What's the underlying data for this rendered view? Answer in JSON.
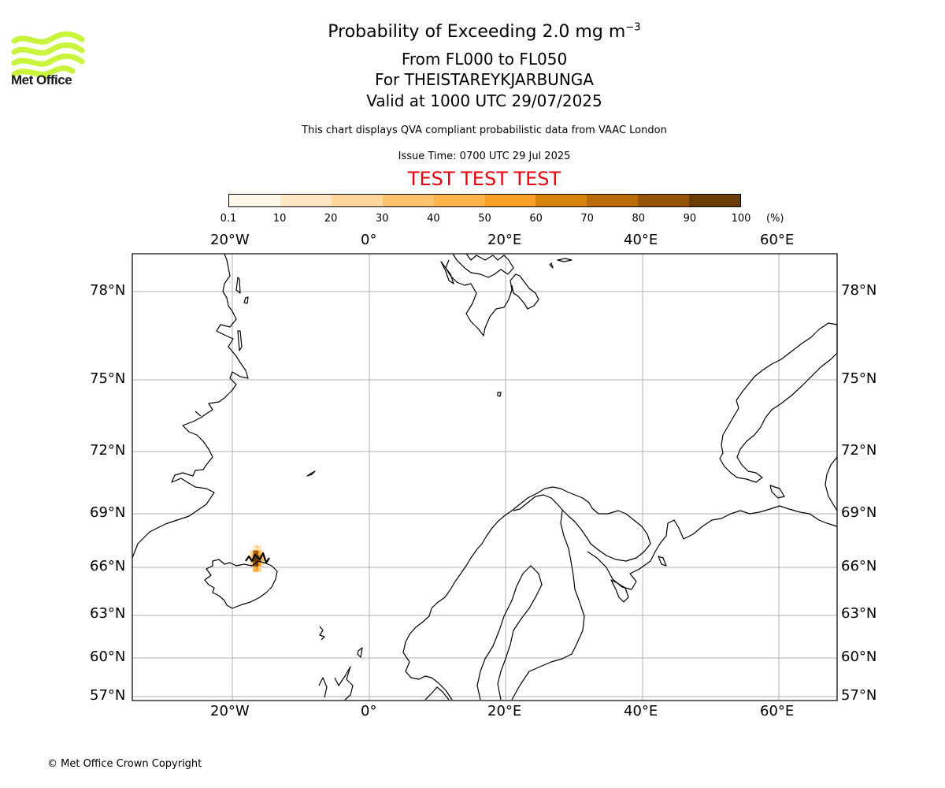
{
  "branding": {
    "logo_text": "Met Office",
    "logo_color": "#c8f53c"
  },
  "header": {
    "title_prefix": "Probability of Exceeding 2.0 mg m",
    "title_exponent": "−3",
    "levels": "From FL000 to FL050",
    "volcano": "For THEISTAREYKJARBUNGA",
    "valid": "Valid at 1000 UTC 29/07/2025",
    "description": "This chart displays QVA compliant probabilistic data from VAAC London",
    "issue_time": "Issue Time: 0700 UTC 29 Jul 2025",
    "test_banner": "TEST TEST TEST",
    "test_color": "#e8000b"
  },
  "colorbar": {
    "ticks": [
      "0.1",
      "10",
      "20",
      "30",
      "40",
      "50",
      "60",
      "70",
      "80",
      "90",
      "100"
    ],
    "unit": "(%)",
    "colors": [
      "#fff7ea",
      "#ffe7c4",
      "#ffd699",
      "#ffc36e",
      "#fdb24a",
      "#f99f25",
      "#d8830c",
      "#b86b08",
      "#955506",
      "#6b3d06"
    ]
  },
  "map": {
    "lon_labels": [
      "20°W",
      "0°",
      "20°E",
      "40°E",
      "60°E"
    ],
    "lat_labels": [
      "78°N",
      "75°N",
      "72°N",
      "69°N",
      "66°N",
      "63°N",
      "60°N",
      "57°N"
    ],
    "gridlines": true,
    "features": [
      "Greenland",
      "Iceland",
      "Jan Mayen",
      "Svalbard",
      "Bear Island",
      "Scandinavia",
      "Finland",
      "Kola Peninsula",
      "Novaya Zemlya",
      "Faroe Islands",
      "Shetland"
    ]
  },
  "chart_data": {
    "type": "heatmap",
    "title": "Probability of Exceeding 2.0 mg m−3",
    "units": "%",
    "value_range": [
      0.1,
      100
    ],
    "cells": [
      {
        "lon": -16.8,
        "lat": 67.1,
        "value": 10
      },
      {
        "lon": -16.4,
        "lat": 67.1,
        "value": 25
      },
      {
        "lon": -16.0,
        "lat": 67.1,
        "value": 15
      },
      {
        "lon": -17.2,
        "lat": 66.8,
        "value": 20
      },
      {
        "lon": -16.8,
        "lat": 66.8,
        "value": 70
      },
      {
        "lon": -16.4,
        "lat": 66.8,
        "value": 85
      },
      {
        "lon": -16.0,
        "lat": 66.8,
        "value": 45
      },
      {
        "lon": -15.6,
        "lat": 66.8,
        "value": 15
      },
      {
        "lon": -17.2,
        "lat": 66.5,
        "value": 35
      },
      {
        "lon": -16.8,
        "lat": 66.5,
        "value": 90
      },
      {
        "lon": -16.4,
        "lat": 66.5,
        "value": 95
      },
      {
        "lon": -16.0,
        "lat": 66.5,
        "value": 75
      },
      {
        "lon": -15.6,
        "lat": 66.5,
        "value": 30
      },
      {
        "lon": -17.2,
        "lat": 66.2,
        "value": 25
      },
      {
        "lon": -16.8,
        "lat": 66.2,
        "value": 80
      },
      {
        "lon": -16.4,
        "lat": 66.2,
        "value": 90
      },
      {
        "lon": -16.0,
        "lat": 66.2,
        "value": 55
      },
      {
        "lon": -15.6,
        "lat": 66.2,
        "value": 15
      },
      {
        "lon": -16.8,
        "lat": 65.9,
        "value": 40
      },
      {
        "lon": -16.4,
        "lat": 65.9,
        "value": 50
      },
      {
        "lon": -16.0,
        "lat": 65.9,
        "value": 20
      }
    ]
  },
  "footer": {
    "copyright": "© Met Office Crown Copyright"
  }
}
